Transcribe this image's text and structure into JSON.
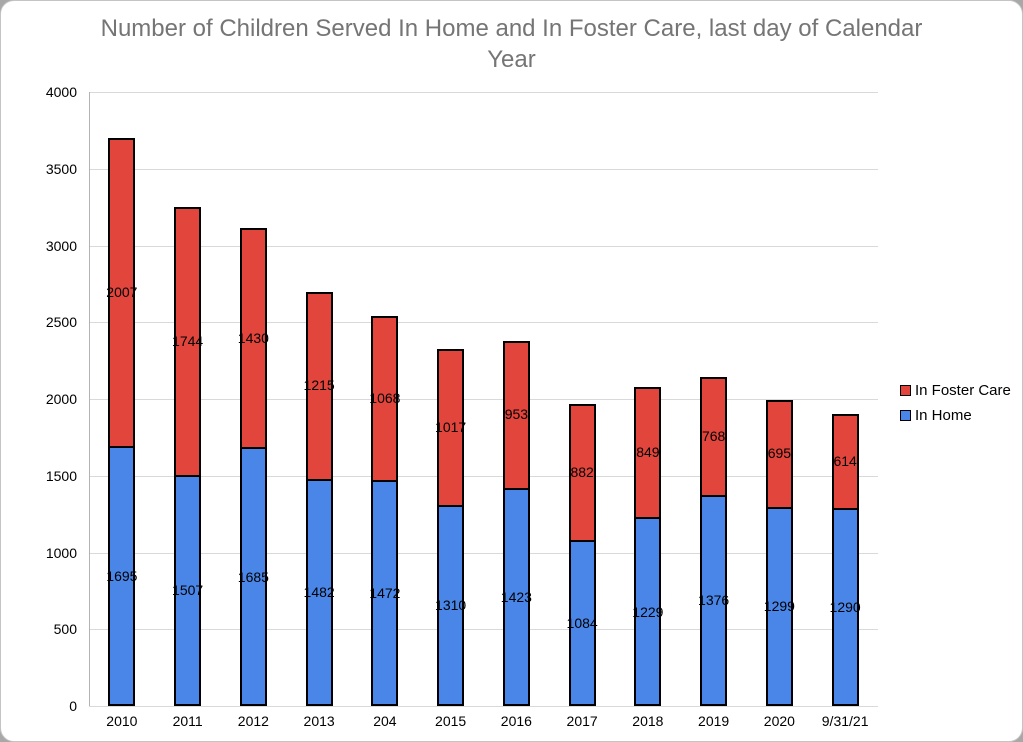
{
  "title": "Number of Children Served In Home and In Foster Care, last day of Calendar Year",
  "title_color": "#757575",
  "legend": {
    "position": "right",
    "items": [
      {
        "label": "In Foster Care",
        "color": "#e2453c"
      },
      {
        "label": "In Home",
        "color": "#4a86e8"
      }
    ]
  },
  "chart_data": {
    "type": "bar",
    "stacked": true,
    "title": "Number of Children Served In Home and In Foster Care, last day of Calendar Year",
    "categories": [
      "2010",
      "2011",
      "2012",
      "2013",
      "204",
      "2015",
      "2016",
      "2017",
      "2018",
      "2019",
      "2020",
      "9/31/21"
    ],
    "series": [
      {
        "name": "In Home",
        "color": "#4a86e8",
        "values": [
          1695,
          1507,
          1685,
          1482,
          1472,
          1310,
          1423,
          1084,
          1229,
          1376,
          1299,
          1290
        ]
      },
      {
        "name": "In Foster Care",
        "color": "#e2453c",
        "values": [
          2007,
          1744,
          1430,
          1215,
          1068,
          1017,
          953,
          882,
          849,
          768,
          695,
          614
        ]
      }
    ],
    "xlabel": "",
    "ylabel": "",
    "ylim": [
      0,
      4000
    ],
    "ytick_step": 500,
    "yticks": [
      0,
      500,
      1000,
      1500,
      2000,
      2500,
      3000,
      3500,
      4000
    ],
    "grid": true,
    "data_labels": true,
    "legend_position": "right",
    "colors": {
      "grid": "#d9d9d9",
      "axis": "#b3b3b3",
      "bar_border": "#000000",
      "label_text": "#000000"
    }
  }
}
